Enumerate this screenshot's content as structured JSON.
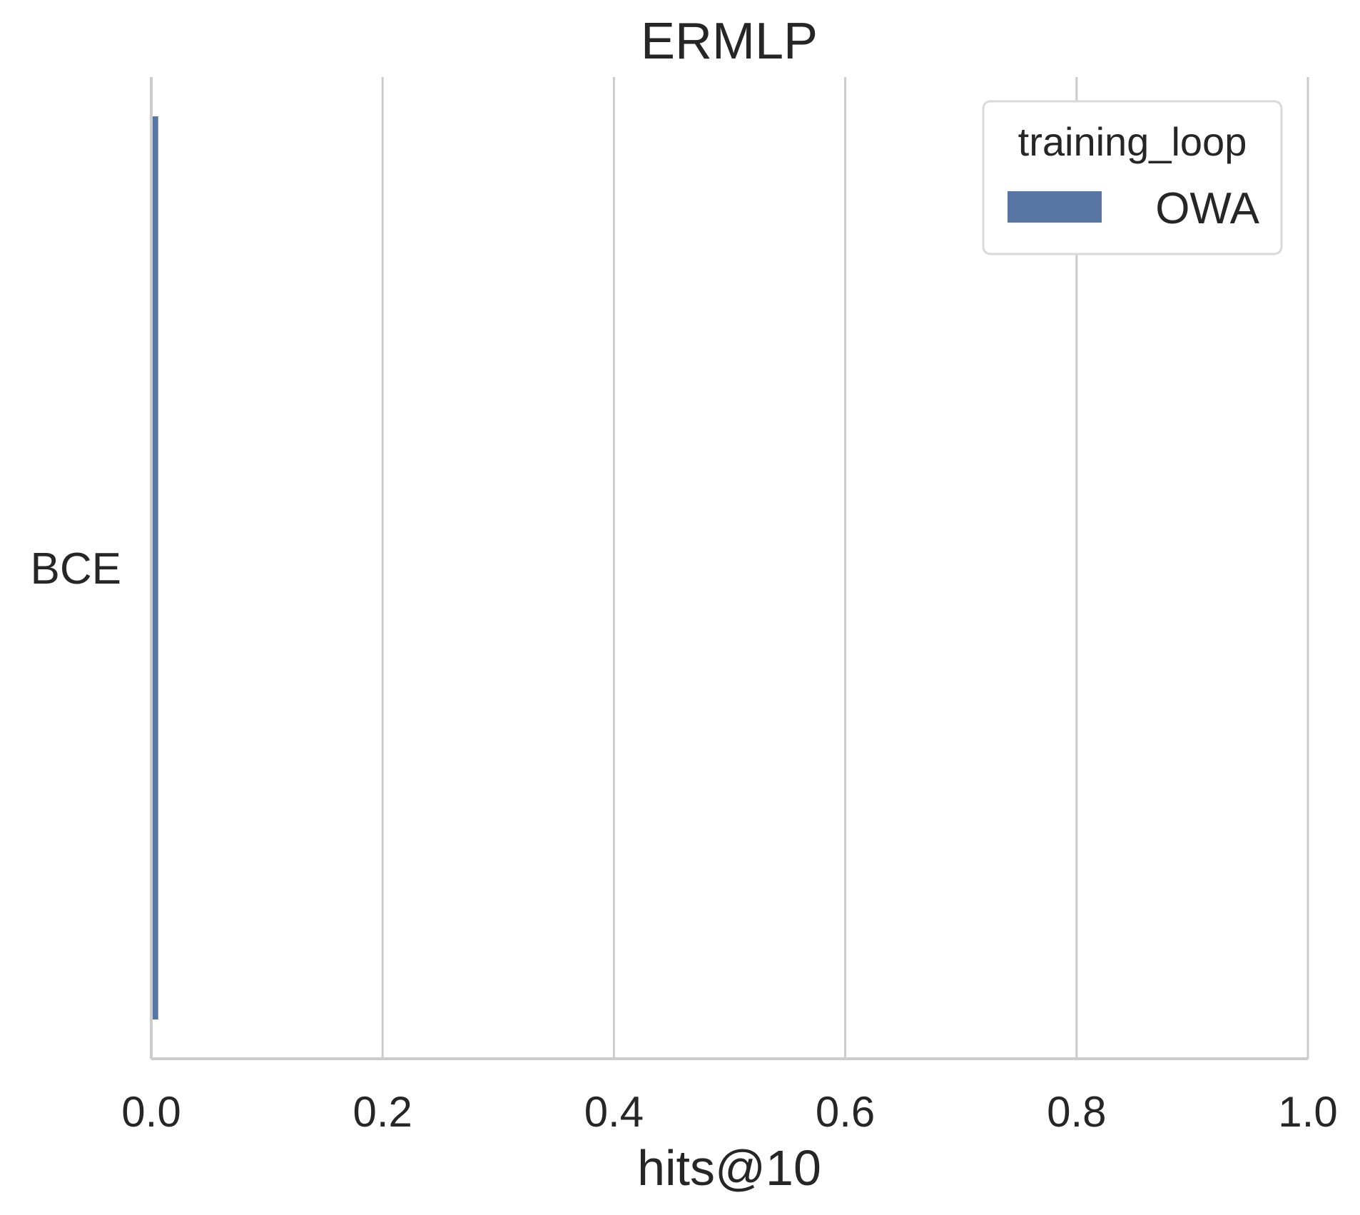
{
  "chart_data": {
    "type": "bar",
    "orientation": "horizontal",
    "title": "ERMLP",
    "xlabel": "hits@10",
    "ylabel": "",
    "categories": [
      "BCE"
    ],
    "series": [
      {
        "name": "OWA",
        "values": [
          0.006
        ],
        "color": "#5875a4"
      }
    ],
    "xlim": [
      0,
      1
    ],
    "xticks": [
      "0.0",
      "0.2",
      "0.4",
      "0.6",
      "0.8",
      "1.0"
    ],
    "grid": "vertical",
    "legend": {
      "title": "training_loop",
      "position": "top-right"
    }
  }
}
